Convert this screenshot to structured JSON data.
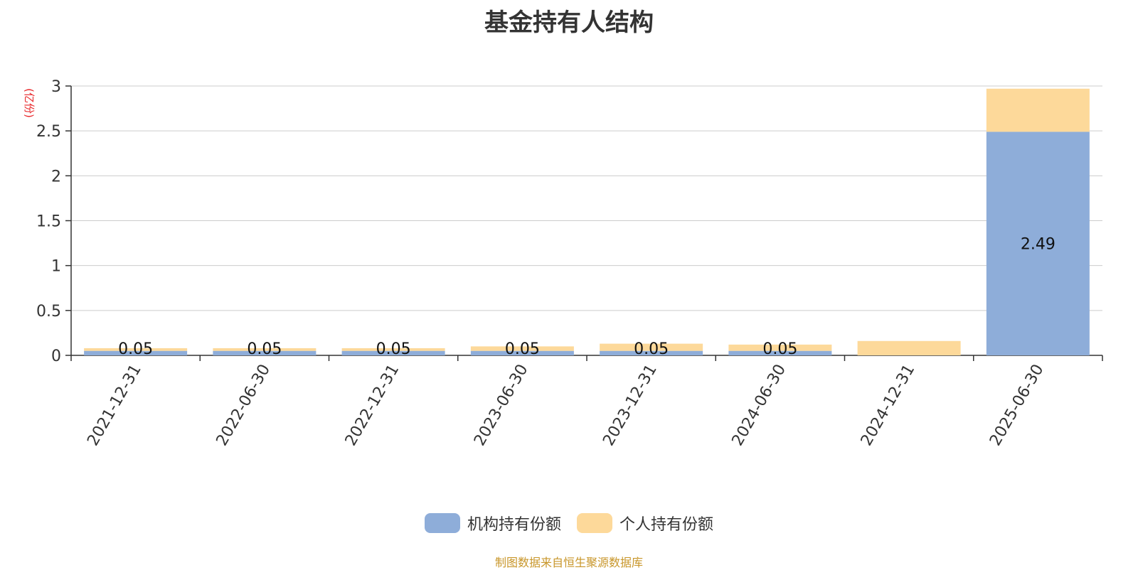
{
  "colors": {
    "institutional": "#8EADD9",
    "individual": "#FDD99A",
    "unit_label": "#E8272A",
    "source": "#C8962A",
    "grid": "#CCCCCC"
  },
  "chart_data": {
    "type": "bar",
    "stacked": true,
    "title": "基金持有人结构",
    "ylabel": "(亿份)",
    "xlabel": "",
    "ylim": [
      0,
      3
    ],
    "yticks": [
      "0",
      "0.5",
      "1",
      "1.5",
      "2",
      "2.5",
      "3"
    ],
    "grid": true,
    "legend_position": "bottom",
    "categories": [
      "2021-12-31",
      "2022-06-30",
      "2022-12-31",
      "2023-06-30",
      "2023-12-31",
      "2024-06-30",
      "2024-12-31",
      "2025-06-30"
    ],
    "series": [
      {
        "name": "机构持有份额",
        "values": [
          0.05,
          0.05,
          0.05,
          0.05,
          0.05,
          0.05,
          0,
          2.49
        ],
        "labels": [
          "0.05",
          "0.05",
          "0.05",
          "0.05",
          "0.05",
          "0.05",
          "",
          "2.49"
        ]
      },
      {
        "name": "个人持有份额",
        "values": [
          0.03,
          0.03,
          0.03,
          0.05,
          0.08,
          0.07,
          0.16,
          0.48
        ],
        "labels": [
          "",
          "",
          "",
          "",
          "",
          "",
          "",
          ""
        ]
      }
    ]
  },
  "footer": {
    "source": "制图数据来自恒生聚源数据库"
  }
}
